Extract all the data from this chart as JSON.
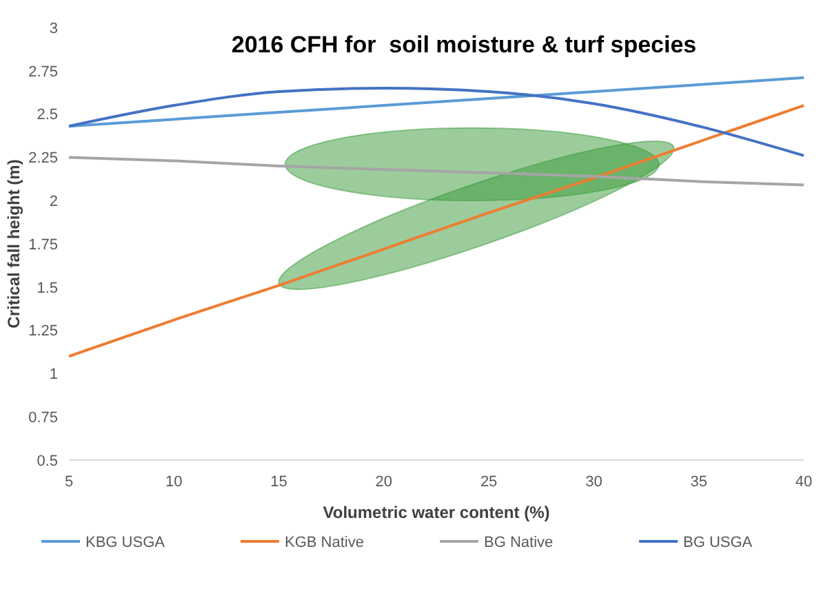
{
  "chart_data": {
    "type": "line",
    "title": "2016 CFH for  soil moisture & turf species",
    "xlabel": "Volumetric water content (%)",
    "ylabel": "Critical fall height (m)",
    "x": [
      5,
      10,
      15,
      20,
      25,
      30,
      35,
      40
    ],
    "series": [
      {
        "name": "KBG USGA",
        "color": "#5b9bd5",
        "values": [
          2.43,
          2.47,
          2.51,
          2.55,
          2.59,
          2.63,
          2.67,
          2.71
        ]
      },
      {
        "name": "KGB Native",
        "color": "#ed7d31",
        "values": [
          1.1,
          1.31,
          1.51,
          1.72,
          1.93,
          2.13,
          2.34,
          2.55
        ]
      },
      {
        "name": "BG Native",
        "color": "#a5a5a5",
        "values": [
          2.25,
          2.23,
          2.2,
          2.18,
          2.16,
          2.14,
          2.11,
          2.09
        ]
      },
      {
        "name": "BG USGA",
        "color": "#4472c4",
        "values": [
          2.43,
          2.55,
          2.63,
          2.65,
          2.63,
          2.56,
          2.43,
          2.26
        ]
      }
    ],
    "xlim": [
      5,
      40
    ],
    "xticks": [
      5,
      10,
      15,
      20,
      25,
      30,
      35,
      40
    ],
    "ylim": [
      0.5,
      3
    ],
    "yticks": [
      {
        "value": 0.5,
        "label": "0.5"
      },
      {
        "value": 0.75,
        "label": "0.75"
      },
      {
        "value": 1,
        "label": "1"
      },
      {
        "value": 1.25,
        "label": "1.25"
      },
      {
        "value": 1.5,
        "label": "1.5"
      },
      {
        "value": 1.75,
        "label": "1.75"
      },
      {
        "value": 2,
        "label": "2"
      },
      {
        "value": 2.25,
        "label": "2.25"
      },
      {
        "value": 2.5,
        "label": "2.5"
      },
      {
        "value": 2.75,
        "label": "2.75"
      },
      {
        "value": 3,
        "label": "3"
      }
    ],
    "grid": false,
    "legend": "bottom",
    "marker": "none",
    "line_style": "solid"
  }
}
